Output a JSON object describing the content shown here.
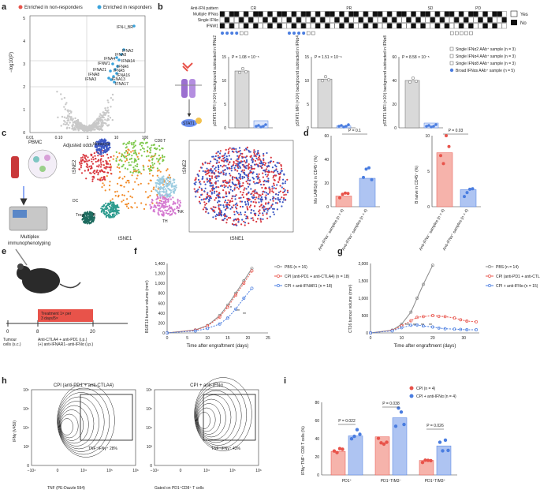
{
  "panel_labels": [
    "a",
    "b",
    "c",
    "d",
    "e",
    "f",
    "g",
    "h",
    "i"
  ],
  "volcano": {
    "legend_red": "Enriched in non-responders",
    "legend_blue": "Enriched in responders",
    "ylabel": "−log10(P)",
    "xlabel": "Adjusted odds ratio",
    "yticks": [
      "0",
      "1",
      "2",
      "3",
      "4",
      "5"
    ],
    "xticks": [
      "0.01",
      "0.10",
      "1",
      "10",
      "100"
    ],
    "genes": [
      "IFN-I_BR",
      "IFNA2",
      "IFNA8",
      "IFNA4",
      "IFNA14",
      "IFNW1",
      "IFNA6",
      "IFNA21",
      "IFNA5",
      "IFNA16",
      "IFNA8",
      "IFNA13",
      "IFNA3",
      "IFNA17"
    ]
  },
  "heatmap": {
    "rows": [
      "Anti-IFN pattern",
      "Multiple IFNαs",
      "Single IFNα",
      "IFNW1"
    ],
    "groups": [
      "CR",
      "PR",
      "SD",
      "PD"
    ],
    "legend_yes": "Yes",
    "legend_no": "No"
  },
  "pstat": {
    "panels": [
      {
        "ylabel": "pSTAT1 MFI (×10³) background subtracted in IFNα2",
        "p": "P = 1.08 × 10⁻⁵",
        "yticks": [
          "0",
          "5",
          "10",
          "15"
        ]
      },
      {
        "ylabel": "pSTAT1 MFI (×10³) background subtracted in IFNα4",
        "p": "P = 1.51 × 10⁻⁶",
        "yticks": [
          "0",
          "5",
          "10",
          "15"
        ]
      },
      {
        "ylabel": "pSTAT1 MFI (×10³) background subtracted in IFNα8",
        "p": "P = 8.58 × 10⁻⁵",
        "yticks": [
          "0",
          "20",
          "40",
          "60"
        ]
      }
    ],
    "legend": [
      "Single IFNα2 AAb⁺ sample (n = 3)",
      "Single IFNα4 AAb⁺ sample (n = 3)",
      "Single IFNα8 AAb⁺ sample (n = 3)",
      "Broad IFNαs AAb⁺ sample (n = 5)"
    ],
    "stat_label": "STAT1"
  },
  "tsne": {
    "pbmc": "PBMC",
    "multiplex": "Multiplex immunophenotyping",
    "axis_x": "tSNE1",
    "axis_y": "tSNE2",
    "clusters": [
      "Monocyte",
      "CD8 T",
      "DC",
      "Treg",
      "B",
      "NK",
      "TH"
    ],
    "numbers": [
      "1",
      "2",
      "3",
      "4",
      "5",
      "6",
      "7",
      "8",
      "9",
      "10",
      "11",
      "12",
      "13",
      "14"
    ]
  },
  "d_panel": {
    "left": {
      "ylabel": "Mo LAIR1(hi) in CD45⁺ (%)",
      "p": "P = 0.1",
      "yticks": [
        "0",
        "20",
        "40",
        "60"
      ],
      "chart_data": {
        "type": "bar",
        "categories": [
          "Anti-IFNα⁻ samples (n = 4)",
          "Anti-IFNα⁺ samples (n = 4)"
        ],
        "values": [
          9,
          24
        ],
        "ylim": [
          0,
          60
        ]
      }
    },
    "right": {
      "ylabel": "B naive in CD45⁺ (%)",
      "p": "P = 0.03",
      "yticks": [
        "0",
        "5",
        "10"
      ],
      "chart_data": {
        "type": "bar",
        "categories": [
          "Anti-IFNα⁻ samples (n = 4)",
          "Anti-IFNα⁺ samples (n = 4)"
        ],
        "values": [
          7.6,
          2.4
        ],
        "ylim": [
          0,
          10
        ]
      }
    }
  },
  "e_panel": {
    "treatment": "Treatment 1× per 3 days/5×",
    "tick0": "0",
    "tick8": "8",
    "tick20": "20",
    "label0": "Tumour cells (s.c.)",
    "label8": "Anti-CTLA4 + anti-PD1 (i.p.) (+) anti-IFNAR1−anti-IFNα (i.p.)"
  },
  "f_panel": {
    "ylabel": "B16F10 tumour volume (mm³)",
    "xlabel": "Time after engraftment (days)",
    "yticks": [
      "0",
      "200",
      "400",
      "600",
      "800",
      "1,000",
      "1,200",
      "1,400"
    ],
    "xticks": [
      "0",
      "5",
      "10",
      "15",
      "20",
      "25"
    ],
    "legend": [
      "PBS (n = 16)",
      "CPI (anti-PD1 + anti-CTLA4) (n = 18)",
      "CPI + anti-IFNAR1 (n = 18)"
    ],
    "stars": [
      "*",
      "**",
      "**"
    ],
    "chart_data": {
      "type": "line",
      "x": [
        0,
        7,
        10,
        13,
        15,
        17,
        19,
        21
      ],
      "series": [
        {
          "name": "PBS (n = 16)",
          "values": [
            0,
            60,
            150,
            350,
            560,
            800,
            1050,
            1300
          ]
        },
        {
          "name": "CPI (anti-PD1 + anti-CTLA4) (n = 18)",
          "values": [
            0,
            55,
            140,
            320,
            520,
            760,
            1000,
            1250
          ]
        },
        {
          "name": "CPI + anti-IFNAR1 (n = 18)",
          "values": [
            0,
            40,
            90,
            180,
            300,
            480,
            700,
            900
          ]
        }
      ],
      "ylim": [
        0,
        1400
      ]
    }
  },
  "g_panel": {
    "ylabel": "CT26 tumour volume (mm³)",
    "xlabel": "Time after engraftment (days)",
    "yticks": [
      "0",
      "500",
      "1,000",
      "1,500",
      "2,000"
    ],
    "xticks": [
      "0",
      "10",
      "20",
      "30"
    ],
    "legend": [
      "PBS (n = 14)",
      "CPI (anti-PD1 + anti-CTLA4) (n = 15)",
      "CPI + anti-IFNα (n = 15)"
    ],
    "stars": [
      "***",
      "**",
      "**",
      "**"
    ],
    "chart_data": {
      "type": "line",
      "x": [
        0,
        7,
        10,
        13,
        15,
        17,
        20,
        22,
        24,
        27,
        29,
        31,
        34
      ],
      "series": [
        {
          "name": "PBS (n = 14)",
          "values": [
            0,
            80,
            250,
            600,
            1000,
            1400,
            1950,
            null,
            null,
            null,
            null,
            null,
            null
          ]
        },
        {
          "name": "CPI (anti-PD1 + anti-CTLA4) (n = 15)",
          "values": [
            0,
            70,
            200,
            350,
            450,
            470,
            500,
            480,
            470,
            430,
            380,
            340,
            320
          ]
        },
        {
          "name": "CPI + anti-IFNα (n = 15)",
          "values": [
            0,
            60,
            150,
            220,
            230,
            200,
            170,
            140,
            120,
            110,
            100,
            90,
            90
          ]
        }
      ],
      "ylim": [
        0,
        2000
      ]
    }
  },
  "h_panel": {
    "left_title": "CPI (anti-PD1 + anti-CTLA4)",
    "right_title": "CPI + anti-IFNα",
    "left_gate": "TNF⁺IFNγ⁺ 28%",
    "right_gate": "TNF⁺IFNγ⁺ 43%",
    "ylabel": "IFNγ (V450)",
    "xlabel": "TNF (PE-Dazzle 594)",
    "gated": "Gated on PD1⁺CD8⁺ T cells",
    "xticks": [
      "−10⁴",
      "0",
      "10⁴",
      "10⁵",
      "10⁶"
    ],
    "yticks": [
      "0",
      "10³",
      "10⁴",
      "10⁵",
      "10⁶"
    ]
  },
  "i_panel": {
    "ylabel": "IFNγ⁺TNF⁺ CD8 T cells (%)",
    "yticks": [
      "0",
      "20",
      "40",
      "60",
      "80"
    ],
    "legend": [
      "CPI (n = 4)",
      "CPI + anti-IFNα (n = 4)"
    ],
    "pvals": [
      "P = 0.022",
      "P = 0.038",
      "P = 0.026"
    ],
    "chart_data": {
      "type": "bar",
      "categories": [
        "PD1⁺",
        "PD1⁺TIM3⁻",
        "PD1⁺TIM3⁺"
      ],
      "series": [
        {
          "name": "CPI (n = 4)",
          "values": [
            26,
            42,
            16
          ]
        },
        {
          "name": "CPI + anti-IFNα (n = 4)",
          "values": [
            43,
            63,
            32
          ]
        }
      ],
      "ylim": [
        0,
        80
      ]
    }
  },
  "colors": {
    "red": "#e8534a",
    "blue": "#4a7de0",
    "lightred": "#f6b3ab",
    "lightblue": "#aec4f2",
    "grey": "#999999"
  }
}
